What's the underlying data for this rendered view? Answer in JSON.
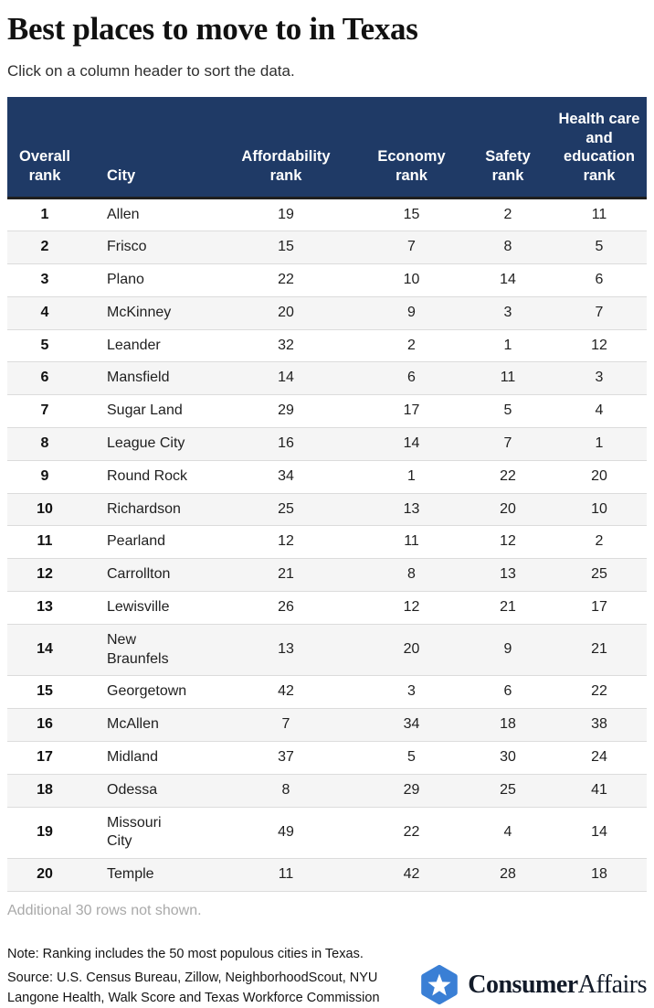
{
  "page": {
    "title": "Best places to move to in Texas",
    "subtitle": "Click on a column header to sort the data."
  },
  "table": {
    "columns": [
      {
        "key": "overall",
        "label": "Overall rank"
      },
      {
        "key": "city",
        "label": "City"
      },
      {
        "key": "affordability",
        "label": "Affordability rank"
      },
      {
        "key": "economy",
        "label": "Economy rank"
      },
      {
        "key": "safety",
        "label": "Safety rank"
      },
      {
        "key": "health",
        "label": "Health care and education rank"
      }
    ],
    "rows": [
      {
        "overall": "1",
        "city": "Allen",
        "affordability": "19",
        "economy": "15",
        "safety": "2",
        "health": "11"
      },
      {
        "overall": "2",
        "city": "Frisco",
        "affordability": "15",
        "economy": "7",
        "safety": "8",
        "health": "5"
      },
      {
        "overall": "3",
        "city": "Plano",
        "affordability": "22",
        "economy": "10",
        "safety": "14",
        "health": "6"
      },
      {
        "overall": "4",
        "city": "McKinney",
        "affordability": "20",
        "economy": "9",
        "safety": "3",
        "health": "7"
      },
      {
        "overall": "5",
        "city": "Leander",
        "affordability": "32",
        "economy": "2",
        "safety": "1",
        "health": "12"
      },
      {
        "overall": "6",
        "city": "Mansfield",
        "affordability": "14",
        "economy": "6",
        "safety": "11",
        "health": "3"
      },
      {
        "overall": "7",
        "city": "Sugar Land",
        "affordability": "29",
        "economy": "17",
        "safety": "5",
        "health": "4"
      },
      {
        "overall": "8",
        "city": "League City",
        "affordability": "16",
        "economy": "14",
        "safety": "7",
        "health": "1"
      },
      {
        "overall": "9",
        "city": "Round Rock",
        "affordability": "34",
        "economy": "1",
        "safety": "22",
        "health": "20"
      },
      {
        "overall": "10",
        "city": "Richardson",
        "affordability": "25",
        "economy": "13",
        "safety": "20",
        "health": "10"
      },
      {
        "overall": "11",
        "city": "Pearland",
        "affordability": "12",
        "economy": "11",
        "safety": "12",
        "health": "2"
      },
      {
        "overall": "12",
        "city": "Carrollton",
        "affordability": "21",
        "economy": "8",
        "safety": "13",
        "health": "25"
      },
      {
        "overall": "13",
        "city": "Lewisville",
        "affordability": "26",
        "economy": "12",
        "safety": "21",
        "health": "17"
      },
      {
        "overall": "14",
        "city": "New Braunfels",
        "affordability": "13",
        "economy": "20",
        "safety": "9",
        "health": "21"
      },
      {
        "overall": "15",
        "city": "Georgetown",
        "affordability": "42",
        "economy": "3",
        "safety": "6",
        "health": "22"
      },
      {
        "overall": "16",
        "city": "McAllen",
        "affordability": "7",
        "economy": "34",
        "safety": "18",
        "health": "38"
      },
      {
        "overall": "17",
        "city": "Midland",
        "affordability": "37",
        "economy": "5",
        "safety": "30",
        "health": "24"
      },
      {
        "overall": "18",
        "city": "Odessa",
        "affordability": "8",
        "economy": "29",
        "safety": "25",
        "health": "41"
      },
      {
        "overall": "19",
        "city": "Missouri City",
        "affordability": "49",
        "economy": "22",
        "safety": "4",
        "health": "14"
      },
      {
        "overall": "20",
        "city": "Temple",
        "affordability": "11",
        "economy": "42",
        "safety": "28",
        "health": "18"
      }
    ],
    "footer_note": "Additional 30 rows not shown."
  },
  "footnotes": {
    "note": "Note: Ranking includes the 50 most populous cities in Texas.",
    "source": "Source: U.S. Census Bureau, Zillow, NeighborhoodScout, NYU Langone Health, Walk Score and Texas Workforce Commission"
  },
  "branding": {
    "logo_text_bold": "Consumer",
    "logo_text_regular": "Affairs",
    "logo_icon": "star-hexagon-icon"
  },
  "colors": {
    "header_bg": "#1f3a66",
    "header_text": "#ffffff",
    "header_divider": "#1f1f1f",
    "row_alt_bg": "#f5f5f5",
    "row_border": "#dcdcdc",
    "muted_text": "#a9a9a9",
    "logo_blue": "#3a7fd5",
    "logo_text": "#131b29"
  }
}
